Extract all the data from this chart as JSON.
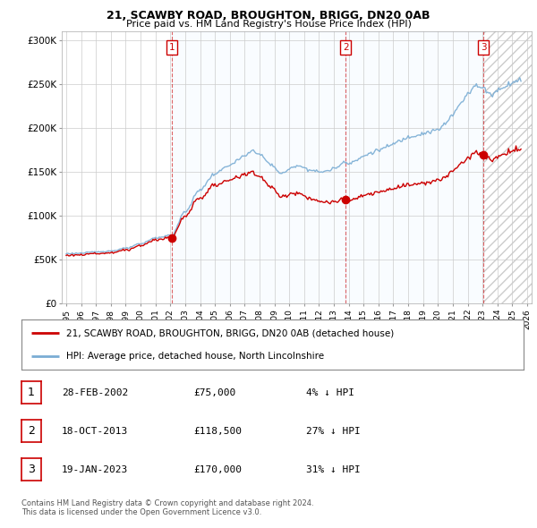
{
  "title1": "21, SCAWBY ROAD, BROUGHTON, BRIGG, DN20 0AB",
  "title2": "Price paid vs. HM Land Registry's House Price Index (HPI)",
  "ylabel_ticks": [
    "£0",
    "£50K",
    "£100K",
    "£150K",
    "£200K",
    "£250K",
    "£300K"
  ],
  "ytick_values": [
    0,
    50000,
    100000,
    150000,
    200000,
    250000,
    300000
  ],
  "ylim": [
    0,
    310000
  ],
  "xlim_left": 1994.7,
  "xlim_right": 2026.3,
  "sale_decimal": [
    2002.1,
    2013.79,
    2023.05
  ],
  "sale_prices": [
    75000,
    118500,
    170000
  ],
  "sale_labels": [
    "1",
    "2",
    "3"
  ],
  "legend_house": "21, SCAWBY ROAD, BROUGHTON, BRIGG, DN20 0AB (detached house)",
  "legend_hpi": "HPI: Average price, detached house, North Lincolnshire",
  "table_rows": [
    [
      "1",
      "28-FEB-2002",
      "£75,000",
      "4% ↓ HPI"
    ],
    [
      "2",
      "18-OCT-2013",
      "£118,500",
      "27% ↓ HPI"
    ],
    [
      "3",
      "19-JAN-2023",
      "£170,000",
      "31% ↓ HPI"
    ]
  ],
  "footer": "Contains HM Land Registry data © Crown copyright and database right 2024.\nThis data is licensed under the Open Government Licence v3.0.",
  "house_color": "#cc0000",
  "hpi_color": "#7aadd4",
  "shade_color": "#ddeeff",
  "vline_color": "#cc0000",
  "background_color": "#ffffff",
  "grid_color": "#cccccc",
  "hatch_color": "#cccccc"
}
